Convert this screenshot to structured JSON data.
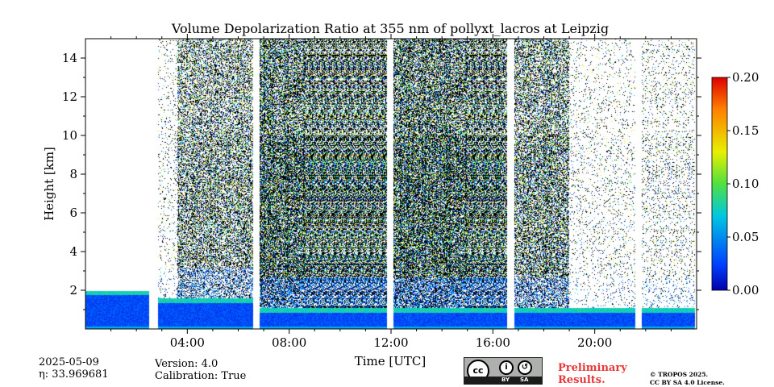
{
  "chart_data": {
    "type": "heatmap",
    "title": "Volume Depolarization Ratio at 355 nm of pollyxt_lacros at Leipzig",
    "xlabel": "Time [UTC]",
    "ylabel": "Height [km]",
    "xlim_hours": [
      0,
      24
    ],
    "ylim_km": [
      0,
      15
    ],
    "x_ticks": [
      {
        "hour": 4,
        "label": "04:00"
      },
      {
        "hour": 8,
        "label": "08:00"
      },
      {
        "hour": 12,
        "label": "12:00"
      },
      {
        "hour": 16,
        "label": "16:00"
      },
      {
        "hour": 20,
        "label": "20:00"
      }
    ],
    "y_ticks": [
      {
        "km": 2,
        "label": "2"
      },
      {
        "km": 4,
        "label": "4"
      },
      {
        "km": 6,
        "label": "6"
      },
      {
        "km": 8,
        "label": "8"
      },
      {
        "km": 10,
        "label": "10"
      },
      {
        "km": 12,
        "label": "12"
      },
      {
        "km": 14,
        "label": "14"
      }
    ],
    "colorbar": {
      "range": [
        0.0,
        0.2
      ],
      "ticks": [
        "0.00",
        "0.05",
        "0.10",
        "0.15",
        "0.20"
      ],
      "colormap": "jet"
    },
    "data_gaps_hours": [
      [
        2.5,
        2.85
      ],
      [
        6.6,
        6.85
      ],
      [
        11.85,
        12.1
      ],
      [
        16.55,
        16.85
      ],
      [
        21.6,
        21.85
      ],
      [
        23.95,
        24.0
      ]
    ],
    "boundary_layer_top_km": [
      {
        "from": 0.0,
        "to": 2.5,
        "km": 2.0
      },
      {
        "from": 2.85,
        "to": 6.6,
        "km": 1.6
      },
      {
        "from": 6.85,
        "to": 24.0,
        "km": 1.1
      }
    ],
    "noise_segments": [
      {
        "from": 0.0,
        "to": 2.5,
        "density": 0.0
      },
      {
        "from": 2.85,
        "to": 3.6,
        "density": 0.08
      },
      {
        "from": 3.6,
        "to": 6.6,
        "density": 0.5
      },
      {
        "from": 6.85,
        "to": 11.85,
        "density": 0.75
      },
      {
        "from": 12.1,
        "to": 16.55,
        "density": 0.75
      },
      {
        "from": 16.85,
        "to": 19.0,
        "density": 0.55
      },
      {
        "from": 19.0,
        "to": 21.6,
        "density": 0.08
      },
      {
        "from": 21.85,
        "to": 23.95,
        "density": 0.12
      }
    ]
  },
  "info": {
    "date": "2025-05-09",
    "eta": "η: 33.969681",
    "version": "Version: 4.0",
    "calibration": "Calibration: True"
  },
  "license": {
    "cc": "cc",
    "by": "BY",
    "sa": "SA",
    "preliminary_line1": "Preliminary",
    "preliminary_line2": "Results.",
    "copyright_line1": "© TROPOS 2025.",
    "copyright_line2": "CC BY SA 4.0 License."
  },
  "colors": {
    "axis": "#000000",
    "preliminary": "#e8383a"
  }
}
